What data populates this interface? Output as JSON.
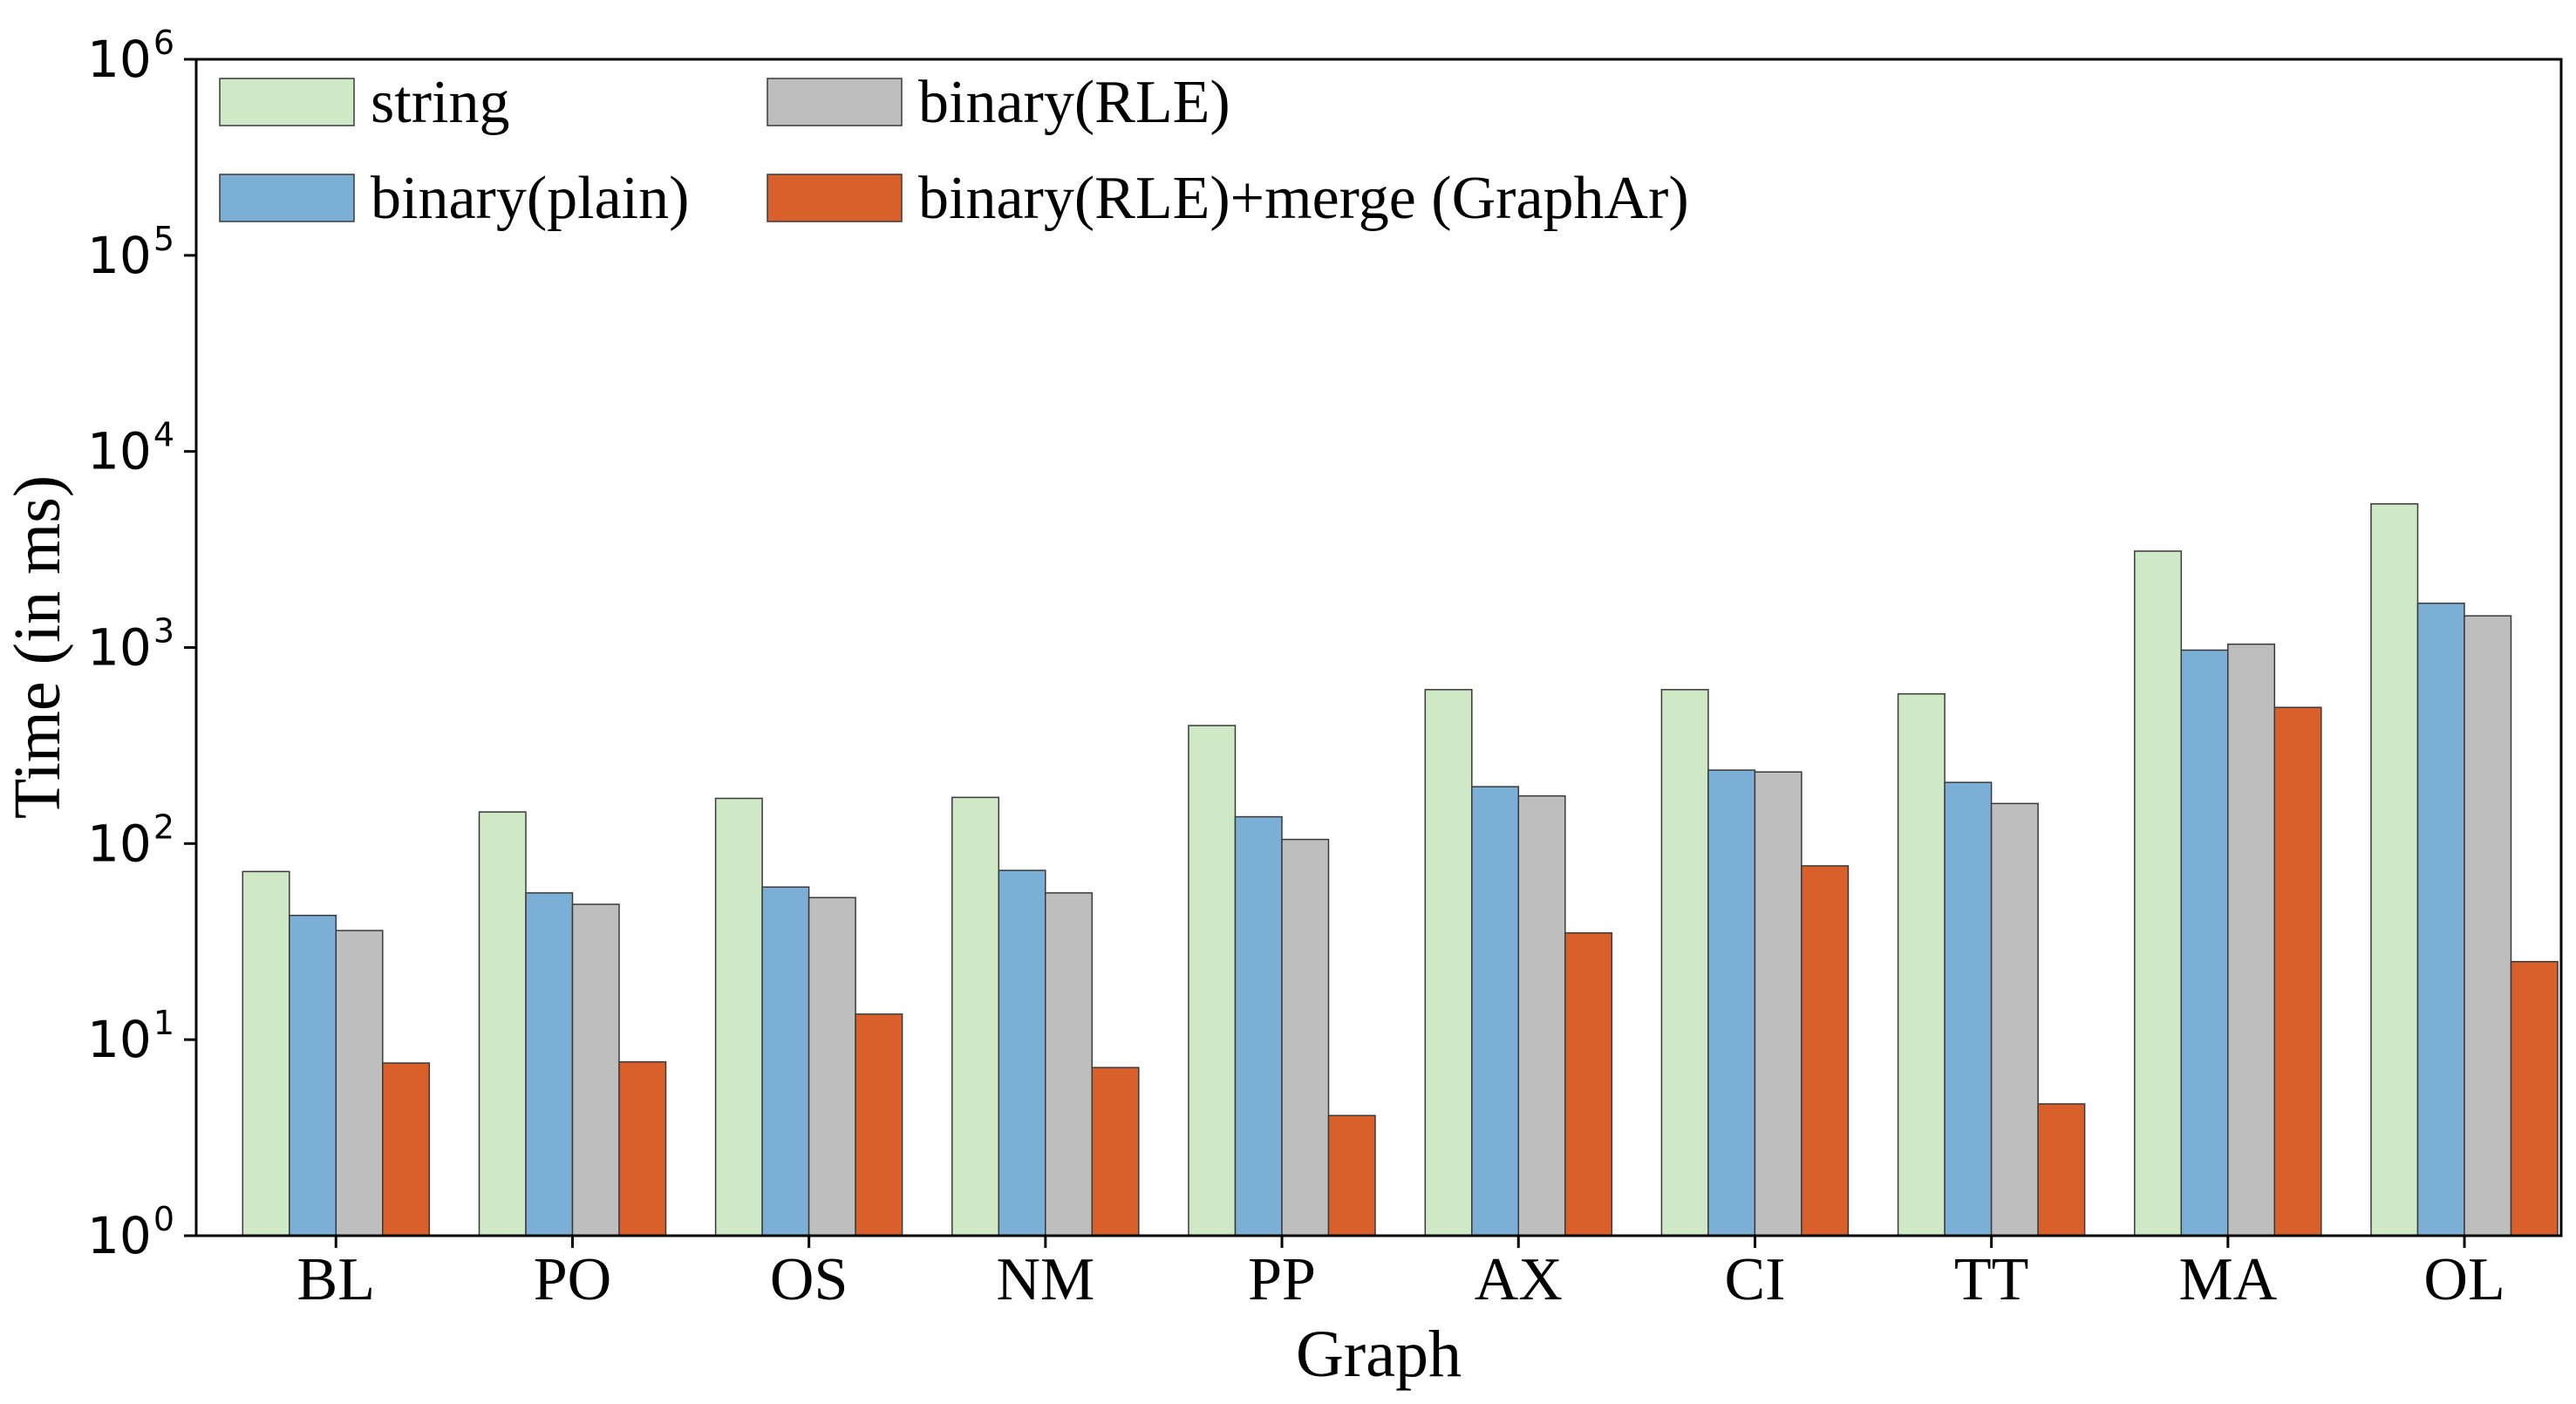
{
  "chart_data": {
    "type": "bar",
    "title": "",
    "xlabel": "Graph",
    "ylabel": "Time (in ms)",
    "yscale": "log",
    "ylim": [
      1,
      1000000
    ],
    "yticks": [
      {
        "base": "10",
        "exp": "0"
      },
      {
        "base": "10",
        "exp": "1"
      },
      {
        "base": "10",
        "exp": "2"
      },
      {
        "base": "10",
        "exp": "3"
      },
      {
        "base": "10",
        "exp": "4"
      },
      {
        "base": "10",
        "exp": "5"
      },
      {
        "base": "10",
        "exp": "6"
      }
    ],
    "grid": false,
    "legend_position": "top-left",
    "categories": [
      "BL",
      "PO",
      "OS",
      "NM",
      "PP",
      "AX",
      "CI",
      "TT",
      "MA",
      "OL"
    ],
    "series": [
      {
        "name": "string",
        "color": "#cfe8c6",
        "values": [
          72,
          145,
          170,
          172,
          400,
          610,
          610,
          580,
          3100,
          5400
        ]
      },
      {
        "name": "binary(plain)",
        "color": "#7bafd6",
        "values": [
          43,
          56,
          60,
          73,
          137,
          195,
          237,
          205,
          970,
          1680
        ]
      },
      {
        "name": "binary(RLE)",
        "color": "#bebebe",
        "values": [
          36,
          49,
          53,
          56,
          105,
          175,
          232,
          160,
          1040,
          1450
        ]
      },
      {
        "name": "binary(RLE)+merge (GraphAr)",
        "color": "#d9602b",
        "values": [
          7.6,
          7.7,
          13.5,
          7.2,
          4.1,
          35,
          77,
          4.7,
          495,
          25
        ]
      }
    ]
  }
}
